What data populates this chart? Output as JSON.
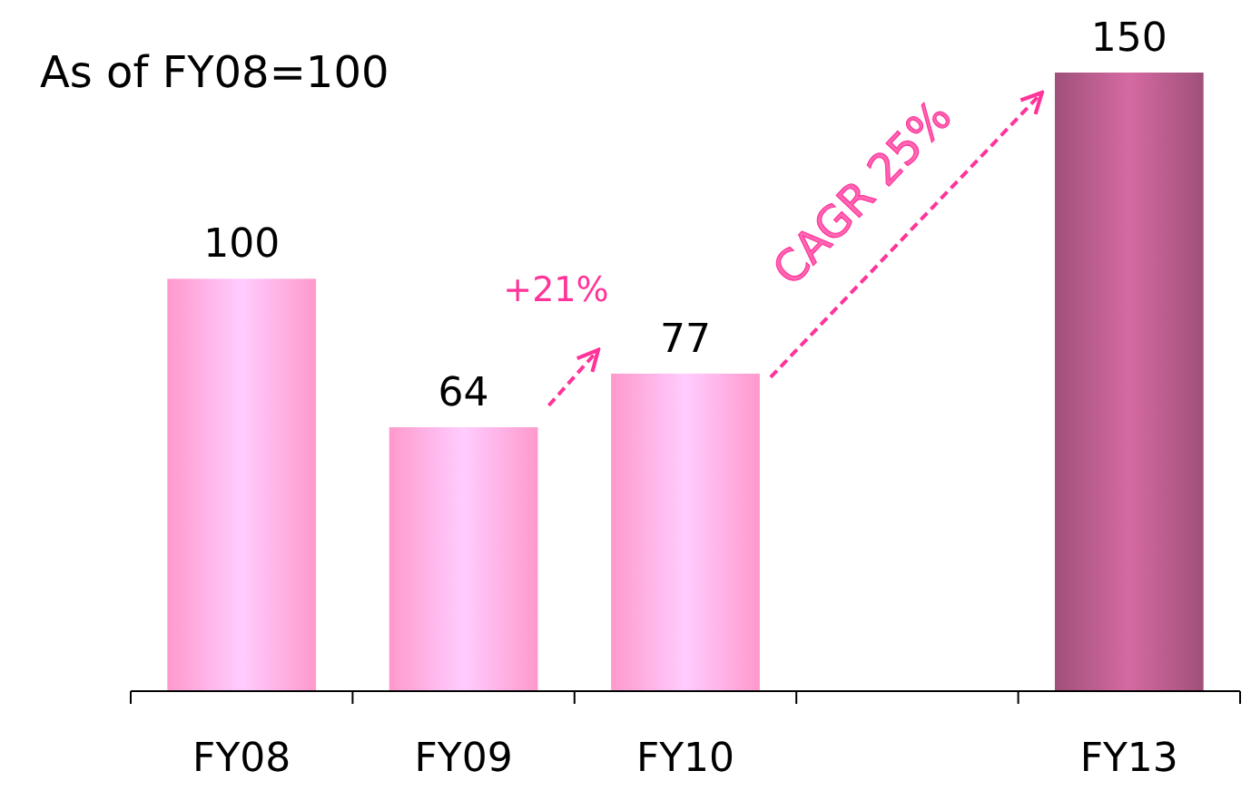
{
  "chart_data": {
    "type": "bar",
    "title": "As of FY08=100",
    "categories": [
      "FY08",
      "FY09",
      "FY10",
      null,
      "FY13"
    ],
    "values": [
      100,
      64,
      77,
      null,
      150
    ],
    "colors": [
      "#ff99cc",
      "#ff99cc",
      "#ff99cc",
      null,
      "#a0507a"
    ],
    "data_labels": true,
    "annotations": [
      "+21%",
      "CAGR 25%"
    ]
  }
}
